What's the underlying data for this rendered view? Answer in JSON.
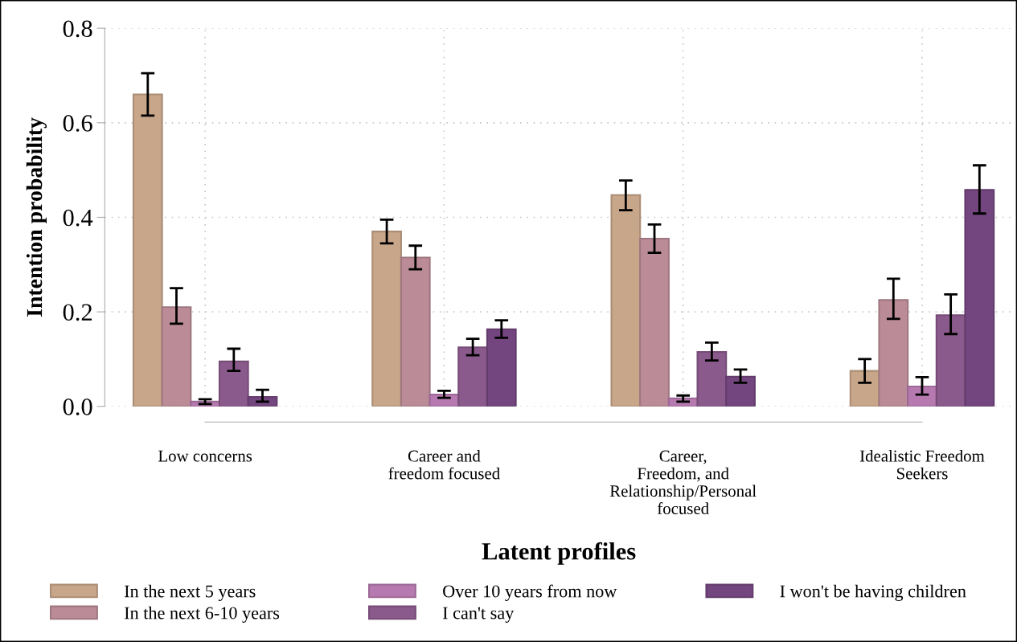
{
  "chart_data": {
    "type": "bar",
    "categories": [
      "Low concerns",
      "Career and\nfreedom focused",
      "Career,\nFreedom, and\nRelationship/Personal\nfocused",
      "Idealistic Freedom\nSeekers"
    ],
    "xlabel": "Latent profiles",
    "ylabel": "Intention probability",
    "ylim": [
      0,
      0.8
    ],
    "yticks": [
      {
        "value": 0,
        "label": "0.0"
      },
      {
        "value": 0.2,
        "label": "0.2"
      },
      {
        "value": 0.4,
        "label": "0.4"
      },
      {
        "value": 0.6,
        "label": "0.6"
      },
      {
        "value": 0.8,
        "label": "0.8"
      }
    ],
    "grid": true,
    "legend": "bottom",
    "series": [
      {
        "name": "In the next 5 years",
        "color": "#c8a68a",
        "values": [
          0.66,
          0.37,
          0.447,
          0.075
        ],
        "errors": [
          [
            0.615,
            0.705
          ],
          [
            0.345,
            0.395
          ],
          [
            0.415,
            0.478
          ],
          [
            0.05,
            0.1
          ]
        ]
      },
      {
        "name": "In the next 6-10 years",
        "color": "#bb8c97",
        "values": [
          0.21,
          0.315,
          0.355,
          0.225
        ],
        "errors": [
          [
            0.175,
            0.25
          ],
          [
            0.29,
            0.34
          ],
          [
            0.325,
            0.385
          ],
          [
            0.185,
            0.27
          ]
        ]
      },
      {
        "name": "Over 10 years from now",
        "color": "#b77ab0",
        "values": [
          0.01,
          0.025,
          0.017,
          0.042
        ],
        "errors": [
          [
            0.005,
            0.015
          ],
          [
            0.018,
            0.033
          ],
          [
            0.01,
            0.023
          ],
          [
            0.025,
            0.062
          ]
        ]
      },
      {
        "name": "I can't say",
        "color": "#8b5a8c",
        "values": [
          0.095,
          0.125,
          0.115,
          0.193
        ],
        "errors": [
          [
            0.075,
            0.122
          ],
          [
            0.108,
            0.143
          ],
          [
            0.097,
            0.135
          ],
          [
            0.153,
            0.237
          ]
        ]
      },
      {
        "name": "I won't be having children",
        "color": "#74467f",
        "values": [
          0.02,
          0.163,
          0.063,
          0.458
        ],
        "errors": [
          [
            0.01,
            0.035
          ],
          [
            0.145,
            0.182
          ],
          [
            0.05,
            0.078
          ],
          [
            0.408,
            0.51
          ]
        ]
      }
    ]
  }
}
